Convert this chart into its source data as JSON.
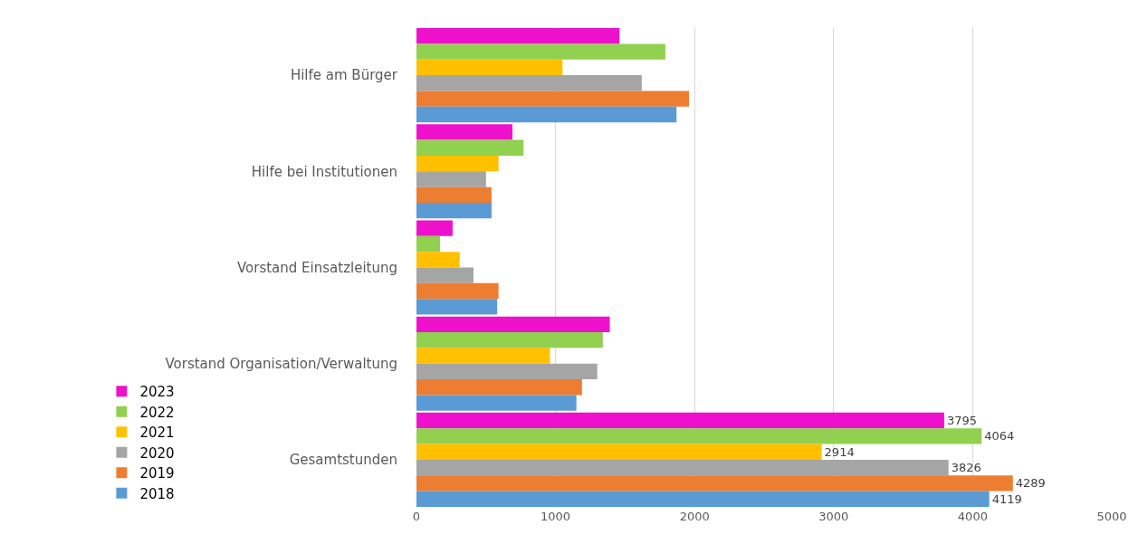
{
  "chart_data": {
    "type": "bar",
    "orientation": "horizontal",
    "categories": [
      "Hilfe am Bürger",
      "Hilfe bei Institutionen",
      "Vorstand Einsatzleitung",
      "Vorstand Organisation/Verwaltung",
      "Gesamtstunden"
    ],
    "series": [
      {
        "name": "2023",
        "color": "#ee11cc",
        "values": [
          1460,
          690,
          260,
          1390,
          3795
        ],
        "value_labels": [
          null,
          null,
          null,
          null,
          "3795"
        ]
      },
      {
        "name": "2022",
        "color": "#92d050",
        "values": [
          1790,
          770,
          170,
          1340,
          4064
        ],
        "value_labels": [
          null,
          null,
          null,
          null,
          "4064"
        ]
      },
      {
        "name": "2021",
        "color": "#ffc000",
        "values": [
          1050,
          590,
          310,
          960,
          2914
        ],
        "value_labels": [
          null,
          null,
          null,
          null,
          "2914"
        ]
      },
      {
        "name": "2020",
        "color": "#a5a5a5",
        "values": [
          1620,
          500,
          410,
          1300,
          3826
        ],
        "value_labels": [
          null,
          null,
          null,
          null,
          "3826"
        ]
      },
      {
        "name": "2019",
        "color": "#ed7d31",
        "values": [
          1960,
          540,
          590,
          1190,
          4289
        ],
        "value_labels": [
          null,
          null,
          null,
          null,
          "4289"
        ]
      },
      {
        "name": "2018",
        "color": "#5b9bd5",
        "values": [
          1870,
          540,
          580,
          1150,
          4119
        ],
        "value_labels": [
          null,
          null,
          null,
          null,
          "4119"
        ]
      }
    ],
    "xlim": [
      0,
      5000
    ],
    "xticks": [
      0,
      1000,
      2000,
      3000,
      4000,
      5000
    ],
    "grid": "x",
    "legend": "bottom left"
  }
}
